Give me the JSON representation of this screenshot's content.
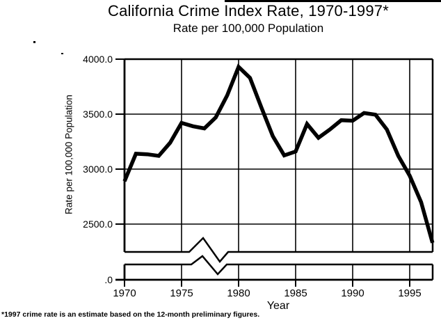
{
  "footnote": "*1997 crime rate is an estimate based on the 12-month preliminary figures.",
  "chart_data": {
    "type": "line",
    "title": "California Crime Index Rate, 1970-1997*",
    "subtitle": "Rate per 100,000 Population",
    "xlabel": "Year",
    "ylabel": "Rate per 100,000 Population",
    "x": [
      1970,
      1971,
      1972,
      1973,
      1974,
      1975,
      1976,
      1977,
      1978,
      1979,
      1980,
      1981,
      1982,
      1983,
      1984,
      1985,
      1986,
      1987,
      1988,
      1989,
      1990,
      1991,
      1992,
      1993,
      1994,
      1995,
      1996,
      1997
    ],
    "series": [
      {
        "name": "California crime index rate per 100,000 population",
        "values": [
          2890,
          3140,
          3135,
          3120,
          3240,
          3420,
          3390,
          3370,
          3470,
          3670,
          3930,
          3830,
          3560,
          3300,
          3125,
          3160,
          3410,
          3285,
          3360,
          3445,
          3440,
          3510,
          3495,
          3360,
          3120,
          2940,
          2700,
          2330
        ]
      }
    ],
    "x_tick_labels": [
      "1970",
      "1975",
      "1980",
      "1985",
      "1990",
      "1995"
    ],
    "y_tick_labels": [
      "4000.0",
      "3500.0",
      "3000.0",
      "2500.0"
    ],
    "y_tick_values": [
      4000,
      3500,
      3000,
      2500
    ],
    "baseline_label": ".0",
    "baseline_value": 0,
    "axis_break": true,
    "xlim": [
      1970,
      1997
    ],
    "ylim_main": [
      2250,
      4000
    ],
    "grid": true,
    "legend_position": "none",
    "line_color": "#000000",
    "background_color": "#ffffff"
  }
}
